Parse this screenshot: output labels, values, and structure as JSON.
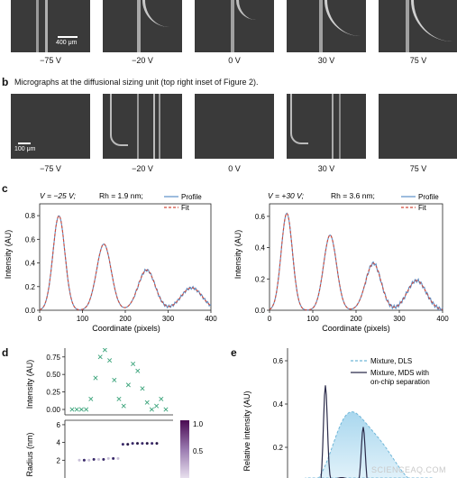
{
  "panel_a": {
    "voltages": [
      "−75 V",
      "−20 V",
      "0 V",
      "30 V",
      "75 V"
    ],
    "scalebar_label": "400 μm"
  },
  "panel_b": {
    "letter": "b",
    "caption": "Micrographs at the diffusional sizing unit (top right inset of Figure 2).",
    "voltages": [
      "−75 V",
      "−20 V",
      "0 V",
      "30 V",
      "75 V"
    ],
    "scalebar_label": "100 μm"
  },
  "panel_c": {
    "letter": "c",
    "xlabel": "Coordinate (pixels)",
    "ylabel": "Intensity (AU)",
    "left_annotation_v": "V = −25 V;",
    "left_annotation_r": "Rh = 1.9 nm;",
    "right_annotation_v": "V = +30 V;",
    "right_annotation_r": "Rh = 3.6 nm;",
    "legend": [
      "Profile",
      "Fit"
    ]
  },
  "panel_d": {
    "letter": "d",
    "ylabel_top": "Intensity (AU)",
    "ylabel_bottom": "Radius (nm)",
    "colorbar_ticks": [
      "1.0",
      "0.5"
    ]
  },
  "panel_e": {
    "letter": "e",
    "ylabel": "Relative intensity (AU)",
    "legend": [
      "Mixture, DLS",
      "Mixture, MDS with",
      "on-chip separation"
    ]
  },
  "watermark": "SCIENCEAQ.COM",
  "colors": {
    "profile": "#5b8fc7",
    "fit": "#d24a3a",
    "cross": "#3aa37a",
    "dls": "#6fb6d8",
    "mds": "#2b2b4a"
  },
  "chart_data": [
    {
      "type": "line",
      "xlabel": "Coordinate (pixels)",
      "ylabel": "Intensity (AU)",
      "xlim": [
        0,
        400
      ],
      "ylim": [
        0,
        0.9
      ],
      "x_ticks": [
        0,
        100,
        200,
        300,
        400
      ],
      "y_ticks": [
        0.0,
        0.2,
        0.4,
        0.6,
        0.8
      ],
      "series": [
        {
          "name": "Profile",
          "peaks": [
            [
              45,
              0.8,
              14
            ],
            [
              150,
              0.56,
              17
            ],
            [
              250,
              0.34,
              20
            ],
            [
              355,
              0.19,
              25
            ]
          ]
        },
        {
          "name": "Fit",
          "peaks": [
            [
              45,
              0.8,
              14
            ],
            [
              150,
              0.56,
              17
            ],
            [
              250,
              0.34,
              20
            ],
            [
              355,
              0.19,
              25
            ]
          ]
        }
      ]
    },
    {
      "type": "line",
      "xlabel": "Coordinate (pixels)",
      "ylabel": "Intensity (AU)",
      "xlim": [
        0,
        400
      ],
      "ylim": [
        0,
        0.68
      ],
      "x_ticks": [
        0,
        100,
        200,
        300,
        400
      ],
      "y_ticks": [
        0.0,
        0.2,
        0.4,
        0.6
      ],
      "series": [
        {
          "name": "Profile",
          "peaks": [
            [
              40,
              0.62,
              13
            ],
            [
              140,
              0.48,
              15
            ],
            [
              240,
              0.3,
              18
            ],
            [
              340,
              0.19,
              22
            ]
          ]
        },
        {
          "name": "Fit",
          "peaks": [
            [
              40,
              0.62,
              13
            ],
            [
              140,
              0.48,
              15
            ],
            [
              240,
              0.3,
              18
            ],
            [
              340,
              0.19,
              22
            ]
          ]
        }
      ]
    },
    {
      "type": "scatter",
      "ylabel": "Intensity (AU)",
      "ylim": [
        0,
        0.85
      ],
      "y_ticks": [
        0.0,
        0.25,
        0.5,
        0.75
      ],
      "x": [
        0,
        1,
        2,
        3,
        4,
        5,
        6,
        7,
        8,
        9,
        10,
        11,
        12,
        13,
        14,
        15,
        16,
        17,
        18,
        19,
        20
      ],
      "values": [
        0.0,
        0.0,
        0.0,
        0.0,
        0.15,
        0.45,
        0.75,
        0.85,
        0.7,
        0.42,
        0.15,
        0.05,
        0.35,
        0.65,
        0.55,
        0.3,
        0.1,
        0.0,
        0.05,
        0.15,
        0.0
      ]
    },
    {
      "type": "scatter",
      "ylabel": "Radius (nm)",
      "ylim": [
        0,
        6.5
      ],
      "y_ticks": [
        2,
        4,
        6
      ],
      "x": [
        0,
        1,
        2,
        3,
        4,
        5,
        6,
        7,
        8,
        9,
        10,
        11,
        12,
        13,
        14,
        15,
        16
      ],
      "values": [
        2.0,
        2.0,
        2.0,
        2.1,
        2.1,
        2.1,
        2.2,
        2.2,
        2.2,
        3.8,
        3.8,
        3.9,
        3.9,
        3.9,
        3.9,
        3.9,
        3.9
      ]
    },
    {
      "type": "area",
      "ylabel": "Relative intensity (AU)",
      "ylim": [
        0,
        0.65
      ],
      "y_ticks": [
        0.2,
        0.4,
        0.6
      ]
    }
  ]
}
